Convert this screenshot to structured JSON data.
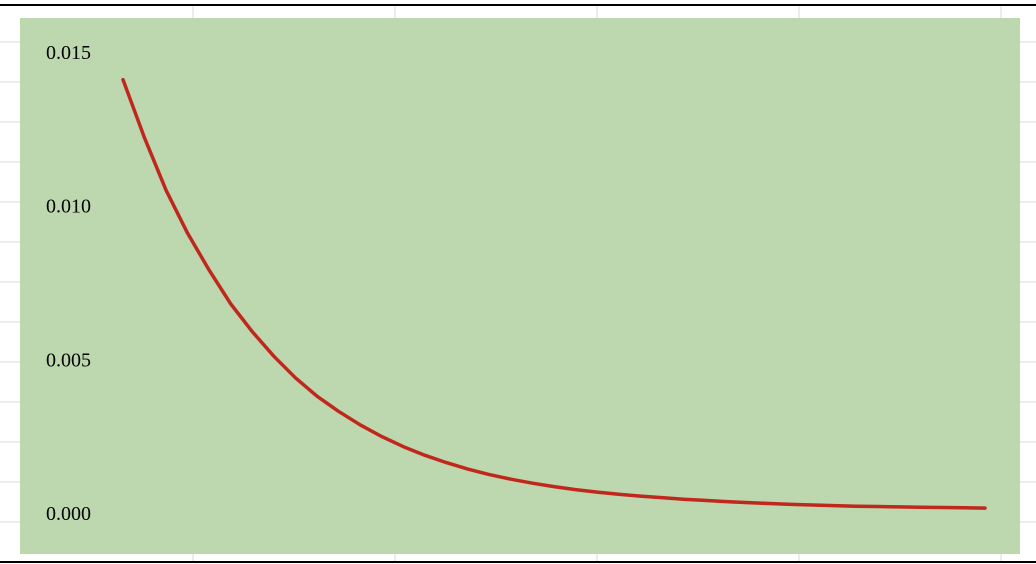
{
  "colors": {
    "plot_background": "#bdd7ae",
    "series_line": "#c0281e",
    "gridline": "#d9d9d9",
    "border": "#000000"
  },
  "chart_data": {
    "type": "line",
    "title": "",
    "xlabel": "",
    "ylabel": "",
    "grid": false,
    "legend": "none",
    "ylim": [
      0,
      0.015
    ],
    "yticks": [
      "0.000",
      "0.005",
      "0.010",
      "0.015"
    ],
    "xlim": [
      0,
      1
    ],
    "series": [
      {
        "values_x": [
          0,
          0.025,
          0.05,
          0.075,
          0.1,
          0.125,
          0.15,
          0.175,
          0.2,
          0.225,
          0.25,
          0.275,
          0.3,
          0.325,
          0.35,
          0.375,
          0.4,
          0.425,
          0.45,
          0.475,
          0.5,
          0.525,
          0.55,
          0.575,
          0.6,
          0.625,
          0.65,
          0.675,
          0.7,
          0.725,
          0.75,
          0.775,
          0.8,
          0.825,
          0.85,
          0.875,
          0.9,
          0.925,
          0.95,
          0.975,
          1.0
        ],
        "values_y": [
          0.0141,
          0.0122,
          0.0105,
          0.0091,
          0.0079,
          0.0068,
          0.0059,
          0.0051,
          0.0044,
          0.0038,
          0.00331,
          0.00287,
          0.00249,
          0.00216,
          0.00188,
          0.00164,
          0.00143,
          0.00125,
          0.0011,
          0.00097,
          0.00086,
          0.00076,
          0.00068,
          0.00061,
          0.00055,
          0.0005,
          0.00045,
          0.00041,
          0.00037,
          0.00034,
          0.00031,
          0.00028,
          0.00026,
          0.00024,
          0.00022,
          0.00021,
          0.0002,
          0.00019,
          0.00018,
          0.00017,
          0.00016
        ]
      }
    ]
  }
}
